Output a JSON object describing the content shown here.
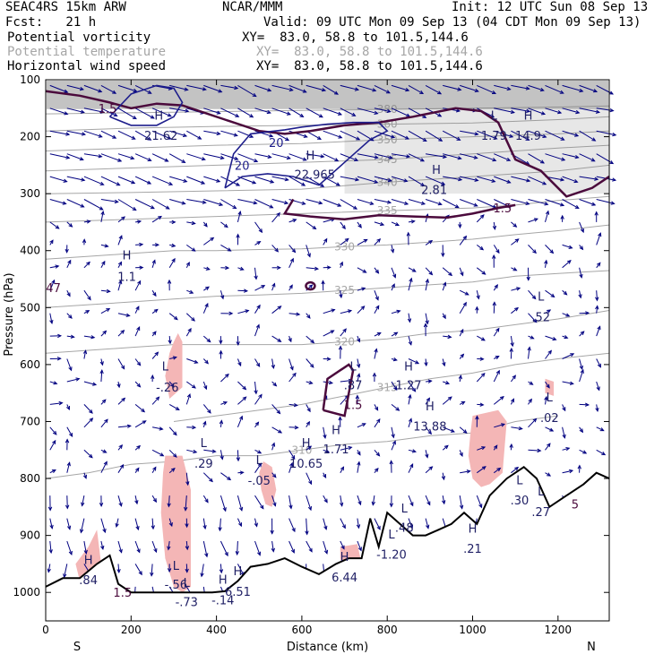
{
  "header": {
    "model": "SEAC4RS 15km ARW",
    "org": "NCAR/MMM",
    "init": "Init: 12 UTC Sun 08 Sep 13",
    "fcst": "Fcst:   21 h",
    "valid": "Valid: 09 UTC Mon 09 Sep 13 (04 CDT Mon 09 Sep 13)",
    "fields": [
      {
        "name": "Potential vorticity",
        "xy": "XY=  83.0, 58.8 to 101.5,144.6",
        "color": "#000000"
      },
      {
        "name": "Potential temperature",
        "xy": "XY=  83.0, 58.8 to 101.5,144.6",
        "color": "#a6a6a6"
      },
      {
        "name": "Horizontal wind speed",
        "xy": "XY=  83.0, 58.8 to 101.5,144.6",
        "color": "#000000"
      }
    ]
  },
  "chart_data": {
    "type": "cross-section",
    "xlabel": "Distance (km)",
    "ylabel": "Pressure (hPa)",
    "xlim": [
      0,
      1320
    ],
    "ylim": [
      1050,
      100
    ],
    "x_ticks": [
      0,
      200,
      400,
      600,
      800,
      1000,
      1200
    ],
    "y_ticks": [
      100,
      200,
      300,
      400,
      500,
      600,
      700,
      800,
      900,
      1000
    ],
    "endpoint_labels": {
      "left": "S",
      "right": "N"
    },
    "colors": {
      "wind_arrow": "#000080",
      "pv_contour": "#4b0a3c",
      "wind_speed_contour": "#1e1e8c",
      "theta_contour": "#a6a6a6",
      "pv_negative_fill": "#f4b6b6",
      "pv_high_fill": "#7a7a7a",
      "terrain": "#000000",
      "label_text": "#1e1e64"
    },
    "terrain_profile": {
      "distance_km": [
        0,
        40,
        80,
        120,
        150,
        170,
        200,
        260,
        300,
        340,
        360,
        390,
        420,
        450,
        480,
        520,
        560,
        600,
        640,
        680,
        710,
        740,
        760,
        780,
        800,
        830,
        860,
        890,
        920,
        950,
        980,
        1010,
        1040,
        1080,
        1120,
        1150,
        1180,
        1220,
        1260,
        1290,
        1320
      ],
      "pressure_hpa": [
        990,
        975,
        975,
        950,
        935,
        985,
        1000,
        1000,
        1000,
        1000,
        1000,
        1000,
        998,
        980,
        955,
        950,
        940,
        955,
        968,
        950,
        940,
        940,
        870,
        920,
        860,
        880,
        900,
        900,
        890,
        880,
        860,
        880,
        830,
        800,
        780,
        800,
        850,
        830,
        810,
        790,
        800
      ]
    },
    "theta_contours": [
      {
        "label": "310",
        "distance_km": [
          0,
          100,
          200,
          300,
          400,
          500,
          600,
          700,
          800,
          900,
          1000,
          1100,
          1200
        ],
        "pressure_hpa": [
          800,
          790,
          775,
          770,
          760,
          760,
          750,
          740,
          735,
          725,
          720,
          700,
          690
        ]
      },
      {
        "label": "315",
        "distance_km": [
          300,
          400,
          500,
          600,
          700,
          800,
          900,
          1000,
          1100,
          1200,
          1320
        ],
        "pressure_hpa": [
          700,
          690,
          680,
          670,
          655,
          640,
          625,
          615,
          600,
          590,
          580
        ]
      },
      {
        "label": "320",
        "distance_km": [
          0,
          100,
          200,
          300,
          400,
          500,
          600,
          700,
          800,
          900,
          1000,
          1100,
          1200,
          1320
        ],
        "pressure_hpa": [
          580,
          575,
          570,
          565,
          565,
          565,
          565,
          560,
          555,
          545,
          540,
          530,
          520,
          505
        ]
      },
      {
        "label": "325",
        "distance_km": [
          0,
          100,
          200,
          300,
          400,
          500,
          600,
          700,
          800,
          900,
          1000,
          1100,
          1200,
          1320
        ],
        "pressure_hpa": [
          500,
          495,
          490,
          485,
          480,
          478,
          475,
          470,
          465,
          460,
          455,
          445,
          440,
          435
        ]
      },
      {
        "label": "330",
        "distance_km": [
          0,
          100,
          200,
          300,
          400,
          500,
          600,
          700,
          800,
          900,
          1000,
          1100,
          1200,
          1320
        ],
        "pressure_hpa": [
          415,
          410,
          405,
          400,
          400,
          398,
          397,
          393,
          390,
          385,
          380,
          372,
          365,
          355
        ]
      },
      {
        "label": "335",
        "distance_km": [
          0,
          200,
          400,
          600,
          800,
          1000,
          1100,
          1200,
          1320
        ],
        "pressure_hpa": [
          350,
          345,
          340,
          335,
          330,
          325,
          320,
          312,
          305
        ]
      },
      {
        "label": "340",
        "distance_km": [
          0,
          200,
          400,
          600,
          800,
          1000,
          1200,
          1320
        ],
        "pressure_hpa": [
          300,
          298,
          295,
          292,
          280,
          270,
          260,
          250
        ]
      },
      {
        "label": "345",
        "distance_km": [
          0,
          200,
          400,
          600,
          800,
          1000,
          1200,
          1320
        ],
        "pressure_hpa": [
          260,
          255,
          250,
          245,
          240,
          230,
          220,
          215
        ]
      },
      {
        "label": "350",
        "distance_km": [
          0,
          200,
          400,
          600,
          800,
          1000,
          1200,
          1320
        ],
        "pressure_hpa": [
          225,
          220,
          215,
          212,
          205,
          200,
          195,
          190
        ]
      },
      {
        "label": "360",
        "distance_km": [
          0,
          200,
          400,
          600,
          800,
          1000,
          1200,
          1320
        ],
        "pressure_hpa": [
          190,
          185,
          182,
          180,
          178,
          176,
          170,
          165
        ]
      },
      {
        "label": "380",
        "distance_km": [
          0,
          200,
          400,
          600,
          800,
          1000,
          1200,
          1320
        ],
        "pressure_hpa": [
          160,
          158,
          156,
          154,
          152,
          150,
          148,
          146
        ]
      }
    ],
    "pv_contours": [
      {
        "level": 1.5,
        "distance_km": [
          0,
          80,
          150,
          200,
          260,
          320,
          420,
          500,
          560,
          620,
          700,
          780,
          860,
          960,
          1020,
          1060,
          1100,
          1160,
          1220,
          1280,
          1320
        ],
        "pressure_hpa": [
          120,
          128,
          140,
          150,
          142,
          145,
          170,
          190,
          195,
          190,
          180,
          175,
          165,
          150,
          155,
          175,
          240,
          260,
          305,
          290,
          270
        ]
      },
      {
        "level": 1.5,
        "distance_km": [
          580,
          560,
          620,
          700,
          780,
          860,
          940,
          1000,
          1060,
          1100
        ],
        "pressure_hpa": [
          310,
          335,
          340,
          345,
          338,
          340,
          342,
          335,
          325,
          320
        ]
      }
    ],
    "wind_speed_contours": [
      {
        "label": "20",
        "distance_km": [
          150,
          200,
          260,
          300,
          320,
          300,
          260,
          200,
          150
        ],
        "pressure_hpa": [
          165,
          180,
          180,
          165,
          140,
          115,
          110,
          125,
          165
        ]
      },
      {
        "label": "20",
        "distance_km": [
          420,
          460,
          520,
          580,
          640,
          700,
          760,
          800,
          780,
          720,
          660,
          600,
          560,
          480,
          440,
          420
        ],
        "pressure_hpa": [
          290,
          270,
          265,
          270,
          285,
          245,
          205,
          190,
          175,
          175,
          178,
          183,
          188,
          195,
          230,
          290
        ]
      }
    ],
    "pv_negative_regions": [
      {
        "distance_km": [
          290,
          320,
          320,
          310,
          300,
          290,
          280,
          290
        ],
        "pressure_hpa": [
          660,
          640,
          560,
          545,
          560,
          580,
          620,
          660
        ]
      },
      {
        "distance_km": [
          280,
          320,
          340,
          340,
          320,
          300,
          280,
          270,
          275
        ],
        "pressure_hpa": [
          760,
          760,
          820,
          990,
          1000,
          990,
          940,
          860,
          790
        ]
      },
      {
        "distance_km": [
          1000,
          1060,
          1080,
          1070,
          1040,
          1020,
          1000,
          990,
          995
        ],
        "pressure_hpa": [
          690,
          680,
          700,
          790,
          810,
          815,
          800,
          760,
          720
        ]
      },
      {
        "distance_km": [
          510,
          530,
          540,
          530,
          515,
          505,
          500
        ],
        "pressure_hpa": [
          770,
          780,
          820,
          850,
          845,
          820,
          790
        ]
      },
      {
        "distance_km": [
          690,
          730,
          740,
          720,
          700,
          690
        ],
        "pressure_hpa": [
          920,
          915,
          950,
          975,
          965,
          940
        ]
      },
      {
        "distance_km": [
          1170,
          1190,
          1190,
          1170
        ],
        "pressure_hpa": [
          625,
          630,
          655,
          650
        ]
      },
      {
        "distance_km": [
          70,
          100,
          120,
          130,
          110,
          80
        ],
        "pressure_hpa": [
          950,
          920,
          890,
          950,
          980,
          980
        ]
      }
    ],
    "extrema_labels": [
      {
        "kind": "H",
        "value": "21.62",
        "distance_km": [
          265,
          270
        ],
        "pressure_hpa": [
          170,
          190
        ]
      },
      {
        "kind": "H",
        "value": "22.965",
        "distance_km": [
          620,
          630
        ],
        "pressure_hpa": [
          240,
          258
        ]
      },
      {
        "kind": "H",
        "value": "2.81",
        "distance_km": [
          915,
          910
        ],
        "pressure_hpa": [
          265,
          285
        ]
      },
      {
        "kind": "L",
        "value": "1.79",
        "distance_km": [
          1050,
          1050
        ],
        "pressure_hpa": [
          170,
          190
        ]
      },
      {
        "kind": "H",
        "value": "14.9",
        "distance_km": [
          1130,
          1130
        ],
        "pressure_hpa": [
          170,
          190
        ]
      },
      {
        "kind": "H",
        "value": "1.1",
        "distance_km": [
          190,
          190
        ],
        "pressure_hpa": [
          415,
          437
        ]
      },
      {
        "kind": "L",
        "value": ".52",
        "distance_km": [
          1160,
          1160
        ],
        "pressure_hpa": [
          488,
          508
        ]
      },
      {
        "kind": "L",
        "value": "-.26",
        "distance_km": [
          280,
          285
        ],
        "pressure_hpa": [
          610,
          632
        ]
      },
      {
        "kind": "L",
        "value": ".87",
        "distance_km": [
          720,
          720
        ],
        "pressure_hpa": [
          610,
          628
        ]
      },
      {
        "kind": "H",
        "value": "1.27",
        "distance_km": [
          850,
          850
        ],
        "pressure_hpa": [
          610,
          628
        ]
      },
      {
        "kind": "L",
        "value": ".02",
        "distance_km": [
          1180,
          1180
        ],
        "pressure_hpa": [
          665,
          685
        ]
      },
      {
        "kind": "H",
        "value": "13.88",
        "distance_km": [
          900,
          900
        ],
        "pressure_hpa": [
          680,
          700
        ]
      },
      {
        "kind": "H",
        "value": "1.71",
        "distance_km": [
          680,
          680
        ],
        "pressure_hpa": [
          722,
          740
        ]
      },
      {
        "kind": "H",
        "value": "10.65",
        "distance_km": [
          610,
          610
        ],
        "pressure_hpa": [
          745,
          765
        ]
      },
      {
        "kind": "L",
        "value": ".29",
        "distance_km": [
          370,
          370
        ],
        "pressure_hpa": [
          745,
          765
        ]
      },
      {
        "kind": "L",
        "value": "-.05",
        "distance_km": [
          500,
          500
        ],
        "pressure_hpa": [
          775,
          795
        ]
      },
      {
        "kind": "L",
        "value": ".30",
        "distance_km": [
          1110,
          1110
        ],
        "pressure_hpa": [
          810,
          830
        ]
      },
      {
        "kind": "L",
        "value": ".27",
        "distance_km": [
          1160,
          1160
        ],
        "pressure_hpa": [
          830,
          850
        ]
      },
      {
        "kind": "L",
        "value": ".48",
        "distance_km": [
          840,
          840
        ],
        "pressure_hpa": [
          860,
          878
        ]
      },
      {
        "kind": "H",
        "value": ".21",
        "distance_km": [
          1000,
          1000
        ],
        "pressure_hpa": [
          895,
          915
        ]
      },
      {
        "kind": "L",
        "value": "-1.20",
        "distance_km": [
          810,
          810
        ],
        "pressure_hpa": [
          905,
          925
        ]
      },
      {
        "kind": "H",
        "value": ".84",
        "distance_km": [
          100,
          100
        ],
        "pressure_hpa": [
          950,
          970
        ]
      },
      {
        "kind": "H",
        "value": "6.44",
        "distance_km": [
          700,
          700
        ],
        "pressure_hpa": [
          945,
          965
        ]
      },
      {
        "kind": "L",
        "value": "-.56",
        "distance_km": [
          305,
          305
        ],
        "pressure_hpa": [
          960,
          978
        ]
      },
      {
        "kind": "H",
        "value": "6.51",
        "distance_km": [
          450,
          450
        ],
        "pressure_hpa": [
          970,
          990
        ]
      },
      {
        "kind": "L",
        "value": "-.73",
        "distance_km": [
          330,
          330
        ],
        "pressure_hpa": [
          990,
          1008
        ]
      },
      {
        "kind": "H",
        "value": "-.14",
        "distance_km": [
          415,
          415
        ],
        "pressure_hpa": [
          985,
          1005
        ]
      }
    ],
    "contour_value_labels": [
      {
        "text": "1.5",
        "distance_km": 145,
        "pressure_hpa": 150,
        "color": "#4b0a3c"
      },
      {
        "text": "20",
        "distance_km": 540,
        "pressure_hpa": 210,
        "color": "#1e1e8c"
      },
      {
        "text": "20",
        "distance_km": 460,
        "pressure_hpa": 250,
        "color": "#1e1e8c"
      },
      {
        "text": "-1.5",
        "distance_km": 1065,
        "pressure_hpa": 325,
        "color": "#4b0a3c"
      },
      {
        "text": "47",
        "distance_km": 18,
        "pressure_hpa": 465,
        "color": "#4b0a3c"
      },
      {
        "text": "1.5",
        "distance_km": 720,
        "pressure_hpa": 670,
        "color": "#4b0a3c"
      },
      {
        "text": "1.5",
        "distance_km": 180,
        "pressure_hpa": 1000,
        "color": "#4b0a3c"
      },
      {
        "text": "5",
        "distance_km": 1240,
        "pressure_hpa": 845,
        "color": "#4b0a3c"
      }
    ],
    "wind_grid": {
      "distance_step_km": 40,
      "pressure_step_hpa": 40,
      "upper_level_speed_scale": "strong westerly above 300 hPa, weak variable below"
    }
  }
}
